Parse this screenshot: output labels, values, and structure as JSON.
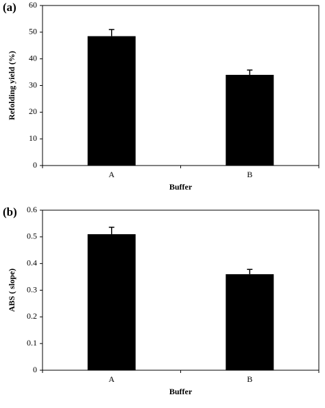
{
  "chart_data": [
    {
      "type": "bar",
      "panel_label": "(a)",
      "y_label": "Refolding yield (%)",
      "x_label": "Buffer",
      "categories": [
        "A",
        "B"
      ],
      "values": [
        48.5,
        34
      ],
      "errors": [
        2.5,
        1.8
      ],
      "color": "#000000",
      "ylim": [
        0,
        60
      ],
      "yticks": [
        0,
        10,
        20,
        30,
        40,
        50,
        60
      ]
    },
    {
      "type": "bar",
      "panel_label": "(b)",
      "y_label": "ABS ( slope)",
      "x_label": "Buffer",
      "categories": [
        "A",
        "B"
      ],
      "values": [
        0.51,
        0.36
      ],
      "errors": [
        0.026,
        0.018
      ],
      "color": "#000000",
      "ylim": [
        0,
        0.6
      ],
      "yticks": [
        0,
        0.1,
        0.2,
        0.3,
        0.4,
        0.5,
        0.6
      ]
    }
  ]
}
